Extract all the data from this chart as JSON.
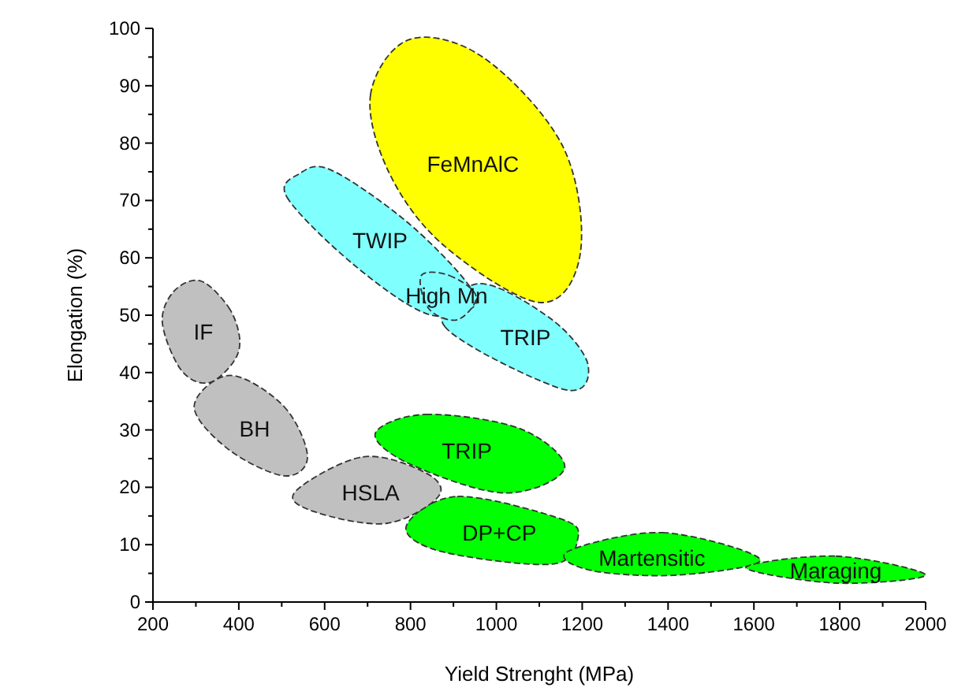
{
  "chart_data": {
    "type": "area",
    "xlabel": "Yield Strenght (MPa)",
    "ylabel": "Elongation (%)",
    "xlim": [
      200,
      2000
    ],
    "ylim": [
      0,
      100
    ],
    "xticks": [
      200,
      400,
      600,
      800,
      1000,
      1200,
      1400,
      1600,
      1800,
      2000
    ],
    "yticks": [
      0,
      10,
      20,
      30,
      40,
      50,
      60,
      70,
      80,
      90,
      100
    ],
    "line_style": "dashed",
    "series": [
      {
        "name": "FeMnAlC",
        "color": "#ffff00",
        "x": [
          799,
          707,
          751,
          880,
          1104,
          1196,
          1155,
          972
        ],
        "values": [
          98.1,
          88.5,
          74.7,
          62.0,
          52.2,
          61.0,
          79.4,
          94.8
        ]
      },
      {
        "name": "TRIP",
        "color": "#80ffff",
        "x": [
          960,
          880,
          1155,
          1214,
          1130
        ],
        "values": [
          55.5,
          48.0,
          37.1,
          41.2,
          49.2
        ]
      },
      {
        "name": "TWIP",
        "color": "#80ffff",
        "x": [
          542,
          512,
          663,
          836,
          946,
          928,
          788,
          615
        ],
        "values": [
          74.7,
          70.6,
          59.1,
          50.3,
          51.4,
          56.0,
          66.5,
          75.3
        ]
      },
      {
        "name": "High Mn",
        "color": "#80ffff",
        "x": [
          825,
          891,
          953,
          909,
          843
        ],
        "values": [
          56.9,
          56.9,
          53.3,
          49.2,
          51.1
        ]
      },
      {
        "name": "BH",
        "color": "#c0c0c0",
        "x": [
          380,
          505,
          560,
          505,
          376,
          296
        ],
        "values": [
          39.5,
          34.1,
          25.3,
          22.0,
          26.6,
          34.1
        ]
      },
      {
        "name": "IF",
        "color": "#c0c0c0",
        "x": [
          310,
          376,
          402,
          387,
          329,
          266,
          222,
          248
        ],
        "values": [
          56.0,
          51.4,
          45.9,
          41.8,
          38.2,
          40.4,
          48.6,
          54.1
        ]
      },
      {
        "name": "TRIP",
        "color": "#00ff00",
        "x": [
          718,
          836,
          1056,
          1159,
          1019,
          800
        ],
        "values": [
          29.4,
          32.7,
          30.2,
          23.3,
          19.0,
          24.0
        ]
      },
      {
        "name": "DP+CP",
        "color": "#00ff00",
        "x": [
          790,
          909,
          1150,
          1190,
          1130,
          872
        ],
        "values": [
          13.2,
          18.4,
          14.5,
          11.2,
          6.6,
          8.8
        ]
      },
      {
        "name": "HSLA",
        "color": "#c0c0c0",
        "x": [
          531,
          689,
          836,
          865,
          744,
          578
        ],
        "values": [
          19.2,
          25.3,
          22.5,
          18.4,
          13.7,
          15.7
        ]
      },
      {
        "name": "Martensitic",
        "color": "#00ff00",
        "x": [
          1166,
          1387,
          1615,
          1423,
          1221
        ],
        "values": [
          8.8,
          12.1,
          7.4,
          4.7,
          5.5
        ]
      },
      {
        "name": "Maraging",
        "color": "#00ff00",
        "x": [
          1581,
          1791,
          2000,
          1791
        ],
        "values": [
          6.0,
          8.0,
          4.7,
          3.3
        ]
      }
    ]
  }
}
